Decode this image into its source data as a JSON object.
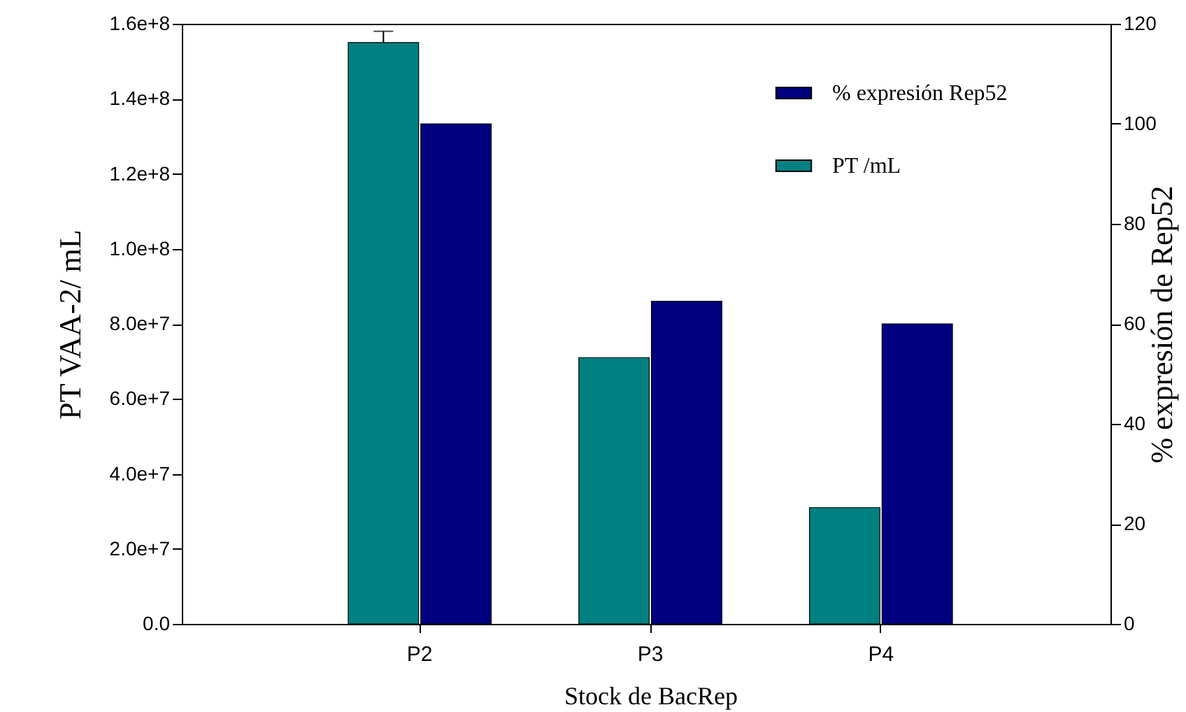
{
  "chart_data": {
    "type": "bar",
    "xlabel": "Stock de BacRep",
    "ylabel": "PT VAA-2/ mL",
    "y2label": "% expresión de Rep52",
    "categories": [
      "P2",
      "P3",
      "P4"
    ],
    "series": [
      {
        "name": "PT /mL",
        "color": "#008080",
        "values": [
          155000000,
          71000000,
          31000000
        ],
        "errors": [
          3000000,
          null,
          null
        ]
      },
      {
        "name": "% expresión Rep52",
        "color": "#000080",
        "axis": "y2",
        "values": [
          100,
          64.5,
          60
        ]
      }
    ],
    "ylim": [
      0,
      160000000
    ],
    "yticks": [
      {
        "value": 0,
        "label": "0.0"
      },
      {
        "value": 20000000,
        "label": "2.0e+7"
      },
      {
        "value": 40000000,
        "label": "4.0e+7"
      },
      {
        "value": 60000000,
        "label": "6.0e+7"
      },
      {
        "value": 80000000,
        "label": "8.0e+7"
      },
      {
        "value": 100000000,
        "label": "1.0e+8"
      },
      {
        "value": 120000000,
        "label": "1.2e+8"
      },
      {
        "value": 140000000,
        "label": "1.4e+8"
      },
      {
        "value": 160000000,
        "label": "1.6e+8"
      }
    ],
    "y2lim": [
      0,
      120
    ],
    "y2ticks": [
      0,
      20,
      40,
      60,
      80,
      100,
      120
    ],
    "legend": "top right"
  }
}
